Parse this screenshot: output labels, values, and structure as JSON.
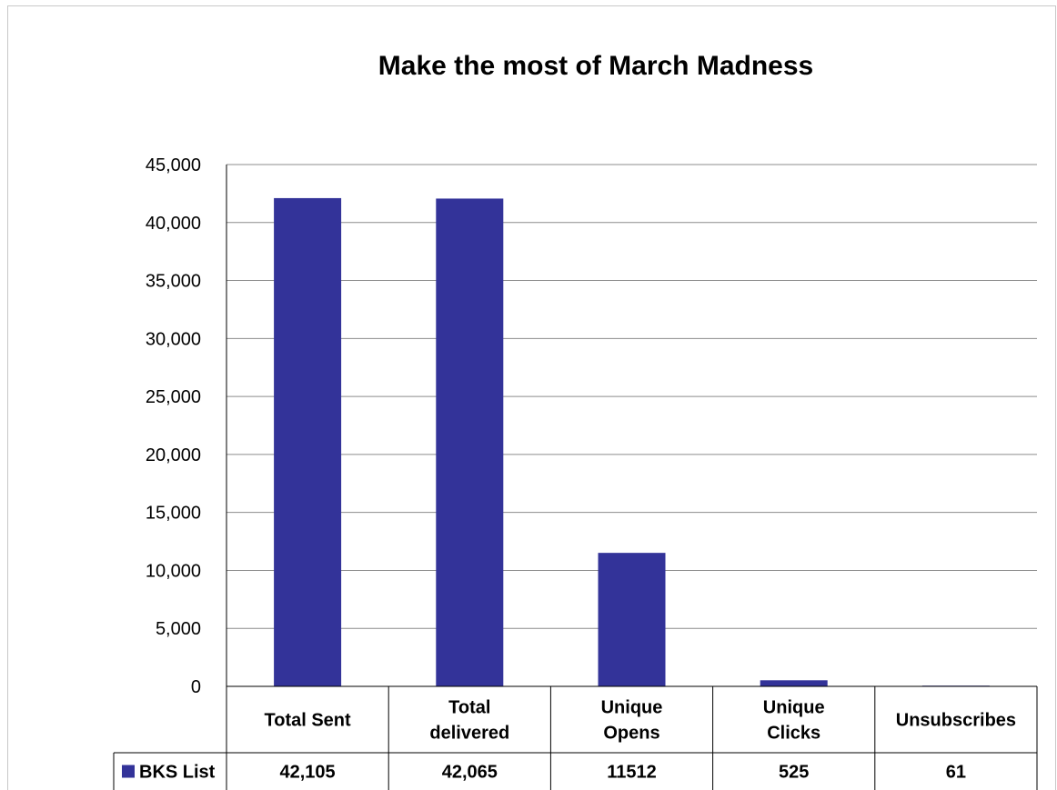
{
  "chart_data": {
    "type": "bar",
    "title": "Make the most of March Madness",
    "xlabel": "",
    "ylabel": "",
    "categories": [
      [
        "Total Sent"
      ],
      [
        "Total",
        "delivered"
      ],
      [
        "Unique",
        "Opens"
      ],
      [
        "Unique",
        "Clicks"
      ],
      [
        "Unsubscribes"
      ]
    ],
    "series": [
      {
        "name": "BKS List",
        "values": [
          42105,
          42065,
          11512,
          525,
          61
        ],
        "labels": [
          "42,105",
          "42,065",
          "11512",
          "525",
          "61"
        ],
        "color": "#333399"
      }
    ],
    "ylim": [
      0,
      45000
    ],
    "yticks": [
      "0",
      "5,000",
      "10,000",
      "15,000",
      "20,000",
      "25,000",
      "30,000",
      "35,000",
      "40,000",
      "45,000"
    ],
    "grid": true,
    "legend": "data-table-left",
    "data_table": true
  }
}
